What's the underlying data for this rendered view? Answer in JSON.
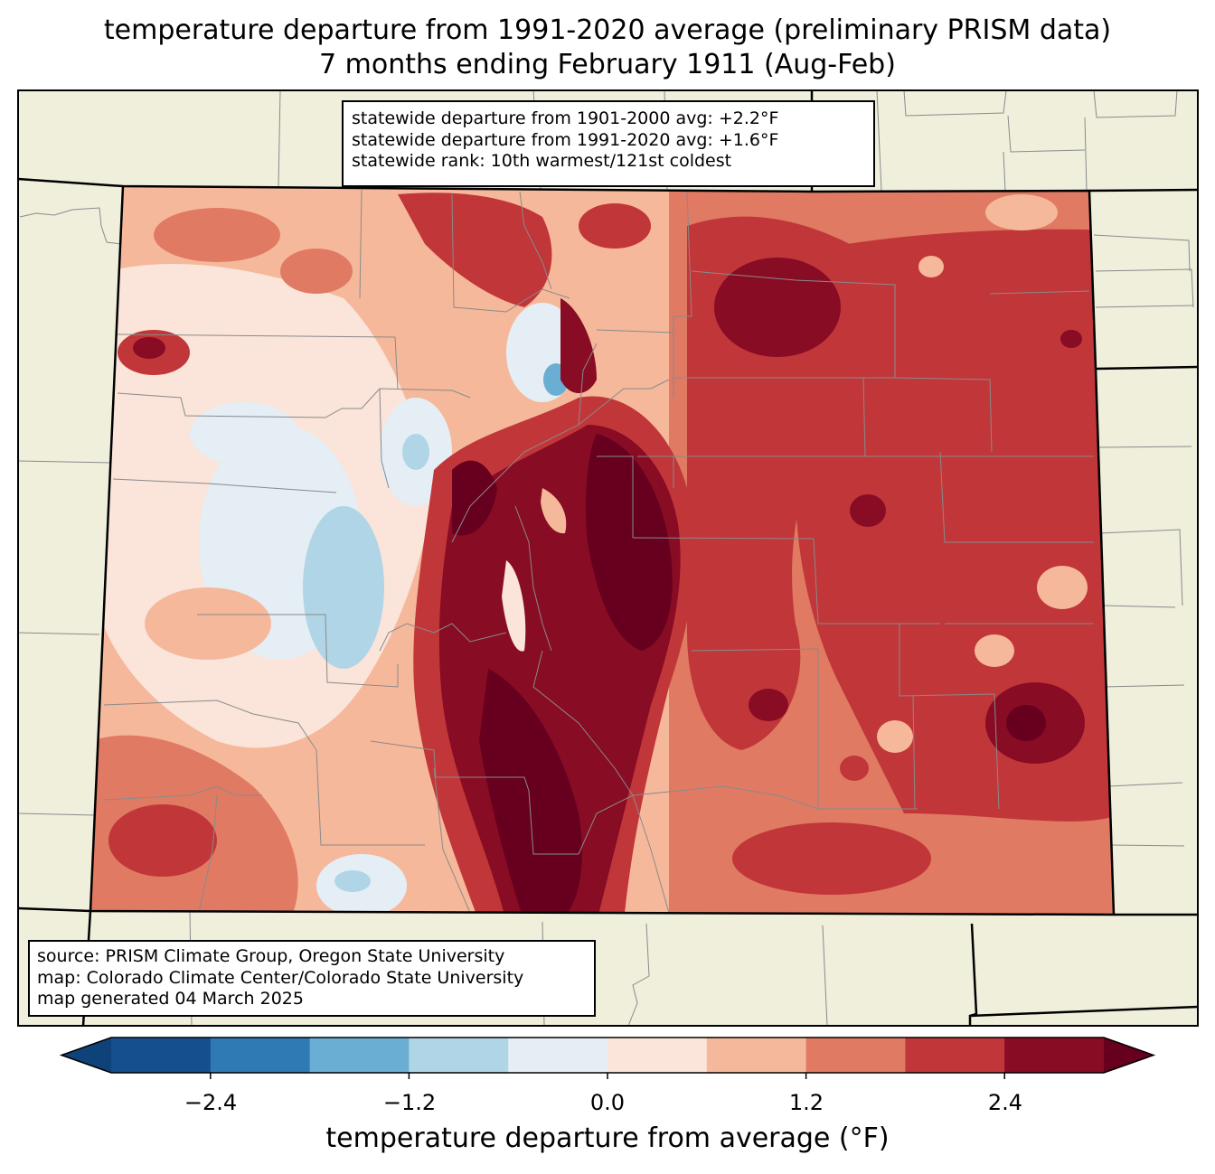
{
  "title": {
    "line1": "temperature departure from 1991-2020 average (preliminary PRISM data)",
    "line2": "7 months ending February 1911 (Aug-Feb)"
  },
  "stats_box": {
    "line1": "statewide departure from 1901-2000 avg: +2.2°F",
    "line2": "statewide departure from 1991-2020 avg: +1.6°F",
    "line3": "statewide rank: 10th warmest/121st coldest"
  },
  "source_box": {
    "line1": "source: PRISM Climate Group, Oregon State University",
    "line2": "map: Colorado Climate Center/Colorado State University",
    "line3": "map generated 04 March 2025"
  },
  "colorbar": {
    "label": "temperature departure from average (°F)",
    "ticks": [
      "−2.4",
      "−1.2",
      "0.0",
      "1.2",
      "2.4"
    ],
    "levels": [
      -3.0,
      -2.4,
      -1.8,
      -1.2,
      -0.6,
      0.0,
      0.6,
      1.2,
      1.8,
      2.4,
      3.0
    ],
    "colors": [
      "#0f4279",
      "#154f8c",
      "#2f79b5",
      "#6aaed4",
      "#b0d5e7",
      "#e4eef4",
      "#fbe4d9",
      "#f6b89b",
      "#e07a63",
      "#c13639",
      "#870c24",
      "#67001f"
    ],
    "extend": "both"
  },
  "map": {
    "region": "Colorado",
    "land_color": "#efefdc",
    "county_line_color": "#8a8a8a",
    "state_line_color": "#000000"
  }
}
